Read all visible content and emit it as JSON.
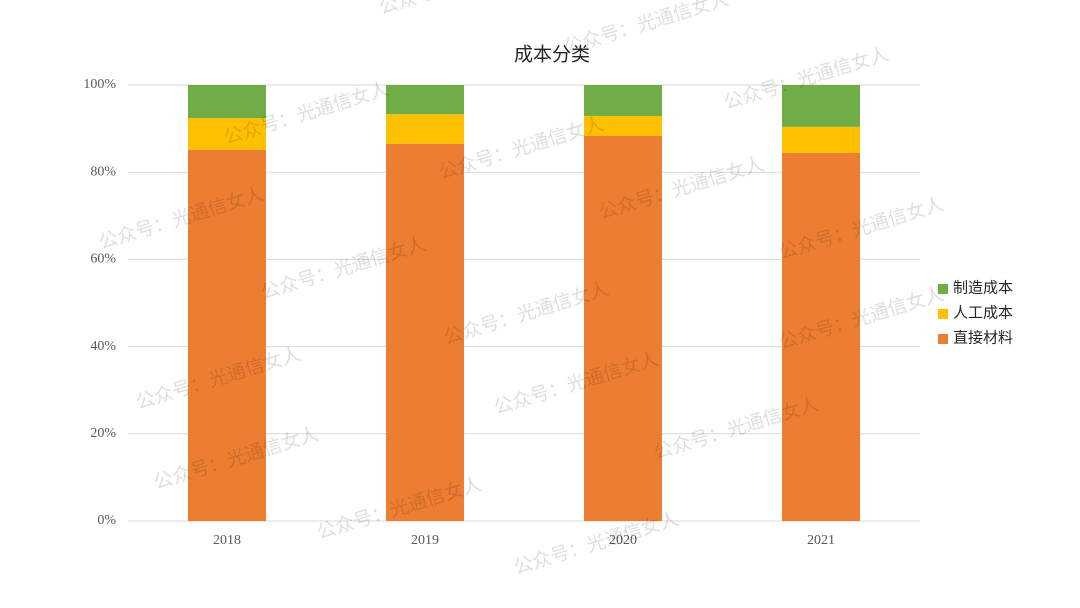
{
  "chart_data": {
    "type": "stacked_bar",
    "title": "成本分类",
    "categories": [
      "2018",
      "2019",
      "2020",
      "2021"
    ],
    "series": [
      {
        "name": "直接材料",
        "color": "#ED7D31",
        "values": [
          85.1,
          86.5,
          88.3,
          84.4
        ]
      },
      {
        "name": "人工成本",
        "color": "#FFC000",
        "values": [
          7.3,
          6.8,
          4.6,
          6.0
        ]
      },
      {
        "name": "制造成本",
        "color": "#70AD47",
        "values": [
          7.6,
          6.7,
          7.1,
          9.6
        ]
      }
    ],
    "ylim": [
      0,
      100
    ],
    "yticks": [
      {
        "value": 0,
        "label": "0%"
      },
      {
        "value": 20,
        "label": "20%"
      },
      {
        "value": 40,
        "label": "40%"
      },
      {
        "value": 60,
        "label": "60%"
      },
      {
        "value": 80,
        "label": "80%"
      },
      {
        "value": 100,
        "label": "100%"
      }
    ],
    "grid": true,
    "legend": "right",
    "watermark": "公众号：光通信女人"
  }
}
